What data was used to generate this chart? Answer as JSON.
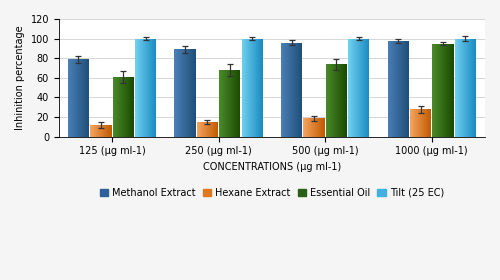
{
  "groups": [
    "125 (μg ml-1)",
    "250 (μg ml-1)",
    "500 (μg ml-1)",
    "1000 (μg ml-1)"
  ],
  "xlabel": "CONCENTRATIONS (μg ml-1)",
  "ylabel": "Inhinition percentage",
  "ylim": [
    0,
    120
  ],
  "yticks": [
    0,
    20,
    40,
    60,
    80,
    100,
    120
  ],
  "series": {
    "Methanol Extract": {
      "values": [
        79,
        89,
        96,
        98
      ],
      "errors": [
        3.5,
        3.5,
        2.5,
        2.0
      ],
      "color_light": "#4A7FB5",
      "color_dark": "#1F4E79"
    },
    "Hexane Extract": {
      "values": [
        12,
        15,
        19,
        28
      ],
      "errors": [
        3.0,
        2.5,
        2.5,
        3.5
      ],
      "color_light": "#F4A460",
      "color_dark": "#C05A00"
    },
    "Essential Oil": {
      "values": [
        61,
        68,
        74,
        95
      ],
      "errors": [
        6.0,
        6.0,
        5.5,
        2.0
      ],
      "color_light": "#4A8A2A",
      "color_dark": "#1A4A00"
    },
    "Tilt (25 EC)": {
      "values": [
        100,
        100,
        100,
        100
      ],
      "errors": [
        1.5,
        1.5,
        1.5,
        2.5
      ],
      "color_light": "#70D0F0",
      "color_dark": "#1A8AC0"
    }
  },
  "bar_width": 0.2,
  "legend_order": [
    "Methanol Extract",
    "Hexane Extract",
    "Essential Oil",
    "Tilt (25 EC)"
  ],
  "legend_colors": [
    "#2E6099",
    "#E07820",
    "#2A6018",
    "#41B0E0"
  ],
  "background_color": "#F5F5F5",
  "plot_bg_color": "#FFFFFF",
  "grid_color": "#D0D0D0",
  "axis_fontsize": 7,
  "tick_fontsize": 7,
  "legend_fontsize": 7
}
